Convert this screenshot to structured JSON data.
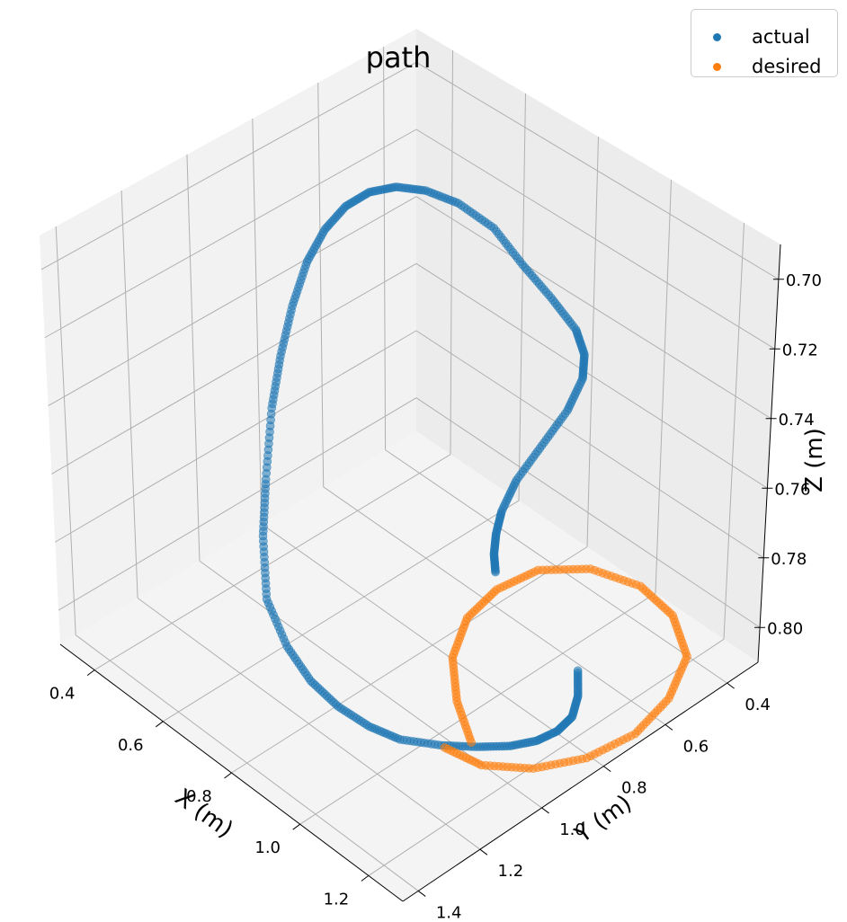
{
  "chart_data": {
    "type": "scatter",
    "title": "path",
    "xlabel": "X (m)",
    "ylabel": "Y (m)",
    "zlabel": "Z (m)",
    "xlim": [
      0.3,
      1.3
    ],
    "ylim": [
      0.3,
      1.45
    ],
    "zlim": [
      0.69,
      0.81
    ],
    "z_axis_inverted": true,
    "grid": true,
    "legend_position": "top-right",
    "x_ticks": [
      "0.4",
      "0.6",
      "0.8",
      "1.0",
      "1.2"
    ],
    "y_ticks": [
      "0.4",
      "0.6",
      "0.8",
      "1.0",
      "1.2",
      "1.4"
    ],
    "z_ticks": [
      "0.70",
      "0.72",
      "0.74",
      "0.76",
      "0.78",
      "0.80"
    ],
    "series": [
      {
        "name": "actual",
        "color": "#1f77b4",
        "x": [
          0.6,
          0.65,
          0.7,
          0.75,
          0.8,
          0.85,
          0.9,
          0.95,
          1.0,
          1.02,
          1.04,
          1.05,
          1.05,
          1.04,
          1.0,
          0.95,
          0.9,
          0.85,
          0.8,
          0.75,
          0.7,
          0.65,
          0.6,
          0.55,
          0.5,
          0.45,
          0.4,
          0.37,
          0.34,
          0.32,
          0.33,
          0.36,
          0.42,
          0.5,
          0.58,
          0.63,
          0.65,
          0.66,
          0.66
        ],
        "y": [
          1.2,
          1.26,
          1.3,
          1.31,
          1.3,
          1.27,
          1.22,
          1.16,
          1.08,
          1.0,
          0.92,
          0.84,
          0.76,
          0.68,
          0.62,
          0.57,
          0.53,
          0.5,
          0.48,
          0.47,
          0.47,
          0.48,
          0.5,
          0.53,
          0.57,
          0.62,
          0.68,
          0.74,
          0.8,
          0.86,
          0.9,
          0.93,
          0.95,
          0.96,
          0.97,
          0.98,
          0.985,
          0.99,
          0.995
        ],
        "z": [
          0.8,
          0.8,
          0.8,
          0.8,
          0.8,
          0.8,
          0.8,
          0.8,
          0.8,
          0.8,
          0.798,
          0.795,
          0.79,
          0.782,
          0.77,
          0.76,
          0.745,
          0.735,
          0.725,
          0.716,
          0.71,
          0.706,
          0.704,
          0.704,
          0.706,
          0.71,
          0.717,
          0.726,
          0.734,
          0.741,
          0.745,
          0.748,
          0.752,
          0.756,
          0.76,
          0.765,
          0.77,
          0.775,
          0.78
        ]
      },
      {
        "name": "desired",
        "color": "#ff7f0e",
        "x": [
          0.9,
          0.84,
          0.76,
          0.66,
          0.56,
          0.46,
          0.38,
          0.34,
          0.35,
          0.41,
          0.52,
          0.64,
          0.76,
          0.86,
          0.93,
          0.95
        ],
        "y": [
          1.2,
          1.08,
          0.97,
          0.9,
          0.88,
          0.9,
          0.98,
          1.1,
          1.22,
          1.34,
          1.41,
          1.44,
          1.42,
          1.36,
          1.27,
          1.17
        ],
        "z": [
          0.8,
          0.8,
          0.8,
          0.8,
          0.8,
          0.8,
          0.8,
          0.8,
          0.8,
          0.8,
          0.8,
          0.8,
          0.8,
          0.8,
          0.8,
          0.8
        ]
      }
    ]
  }
}
